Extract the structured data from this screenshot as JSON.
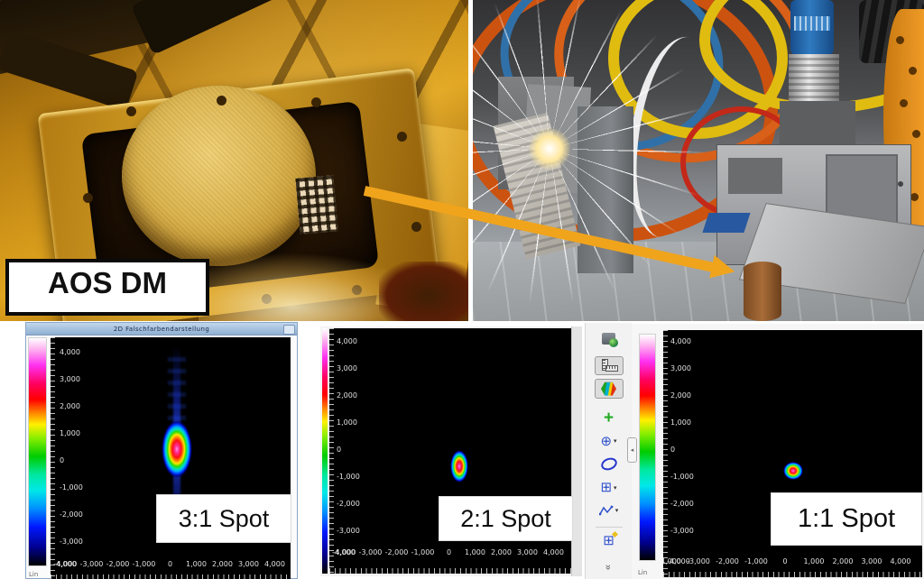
{
  "figure": {
    "dm_caption": "AOS DM"
  },
  "plots": [
    {
      "title": "2D Falschfarbendarstellung",
      "spot_label": "3:1 Spot",
      "scale_label": "Lin",
      "yticks": [
        "4,000",
        "3,000",
        "2,000",
        "1,000",
        "0",
        "-1,000",
        "-2,000",
        "-3,000"
      ],
      "y_min_label": "-4,000",
      "xticks": [
        "-4,000",
        "-3,000",
        "-2,000",
        "-1,000",
        "0",
        "1,000",
        "2,000",
        "3,000",
        "4,000"
      ]
    },
    {
      "spot_label": "2:1 Spot",
      "yticks": [
        "4,000",
        "3,000",
        "2,000",
        "1,000",
        "0",
        "-1,000",
        "-2,000",
        "-3,000"
      ],
      "y_min_label": "-4,000",
      "xticks": [
        "-4,000",
        "-3,000",
        "-2,000",
        "-1,000",
        "0",
        "1,000",
        "2,000",
        "3,000",
        "4,000"
      ]
    },
    {
      "spot_label": "1:1 Spot",
      "scale_label": "Lin",
      "yticks": [
        "4,000",
        "3,000",
        "2,000",
        "1,000",
        "0",
        "-1,000",
        "-2,000",
        "-3,000"
      ],
      "y_min_label": "-4,000",
      "xticks": [
        "-4,000",
        "-3,000",
        "-2,000",
        "-1,000",
        "0",
        "1,000",
        "2,000",
        "3,000",
        "4,000"
      ]
    }
  ],
  "toolbar": {
    "icons": [
      "export-image-icon",
      "measure-ruler-icon",
      "false-color-hexagon-icon",
      "add-plus-icon",
      "crosshair-tool-icon",
      "ellipse-tool-icon",
      "grid-tool-icon",
      "profile-polyline-icon",
      "results-grid-icon",
      "more-tools-chevrons-icon"
    ],
    "collapse_handle_icon": "collapse-left-icon",
    "collapse_glyph": "◂",
    "chevrons_glyph": "«",
    "crosshair_glyph": "⊕",
    "grid_glyph": "⊞",
    "plus_glyph": "+",
    "dropdown_glyph": "▾"
  },
  "colors": {
    "arrow": "#f0a41c",
    "plot_background": "#000000",
    "titlebar_blue": "#a8c4e0",
    "colormap_stops": [
      "#ffffff 0%",
      "#ffb0f0 5%",
      "#ff30f0 12%",
      "#ff0060 20%",
      "#ff0000 27%",
      "#ff8800 33%",
      "#fff000 38%",
      "#88ee00 44%",
      "#00cc00 52%",
      "#00e8a0 60%",
      "#00e8e8 67%",
      "#0090ff 75%",
      "#0018ff 83%",
      "#000090 92%",
      "#000000 100%"
    ]
  },
  "chart_data": [
    {
      "type": "heatmap",
      "title": "3:1 Spot",
      "window_title": "2D Falschfarbendarstellung",
      "scale": "Lin",
      "x_range": [
        -4400,
        4400
      ],
      "y_range": [
        -4400,
        4400
      ],
      "x_ticks": [
        -4000,
        -3000,
        -2000,
        -1000,
        0,
        1000,
        2000,
        3000,
        4000
      ],
      "y_ticks": [
        -4000,
        -3000,
        -2000,
        -1000,
        0,
        1000,
        2000,
        3000,
        4000
      ],
      "spot_center": [
        240,
        430
      ],
      "spot_extent": [
        1150,
        2100
      ],
      "colormap": "rainbow linear (white-magenta-red-yellow-green-cyan-blue-black)",
      "notes": "elongated 3:1 vertical beam spot with faint vertical blue diffraction streak"
    },
    {
      "type": "heatmap",
      "title": "2:1 Spot",
      "scale": "Lin",
      "x_range": [
        -4400,
        4400
      ],
      "y_range": [
        -4400,
        4400
      ],
      "x_ticks": [
        -4000,
        -3000,
        -2000,
        -1000,
        0,
        1000,
        2000,
        3000,
        4000
      ],
      "y_ticks": [
        -4000,
        -3000,
        -2000,
        -1000,
        0,
        1000,
        2000,
        3000,
        4000
      ],
      "spot_center": [
        340,
        -570
      ],
      "spot_extent": [
        690,
        1200
      ],
      "colormap": "rainbow linear",
      "notes": "2:1 elongated beam spot"
    },
    {
      "type": "heatmap",
      "title": "1:1 Spot",
      "scale": "Lin",
      "x_range": [
        -4400,
        4400
      ],
      "y_range": [
        -4400,
        4400
      ],
      "x_ticks": [
        -4000,
        -3000,
        -2000,
        -1000,
        0,
        1000,
        2000,
        3000,
        4000
      ],
      "y_ticks": [
        -4000,
        -3000,
        -2000,
        -1000,
        0,
        1000,
        2000,
        3000,
        4000
      ],
      "spot_center": [
        280,
        -730
      ],
      "spot_extent": [
        690,
        630
      ],
      "colormap": "rainbow linear",
      "notes": "round 1:1 beam spot"
    }
  ]
}
